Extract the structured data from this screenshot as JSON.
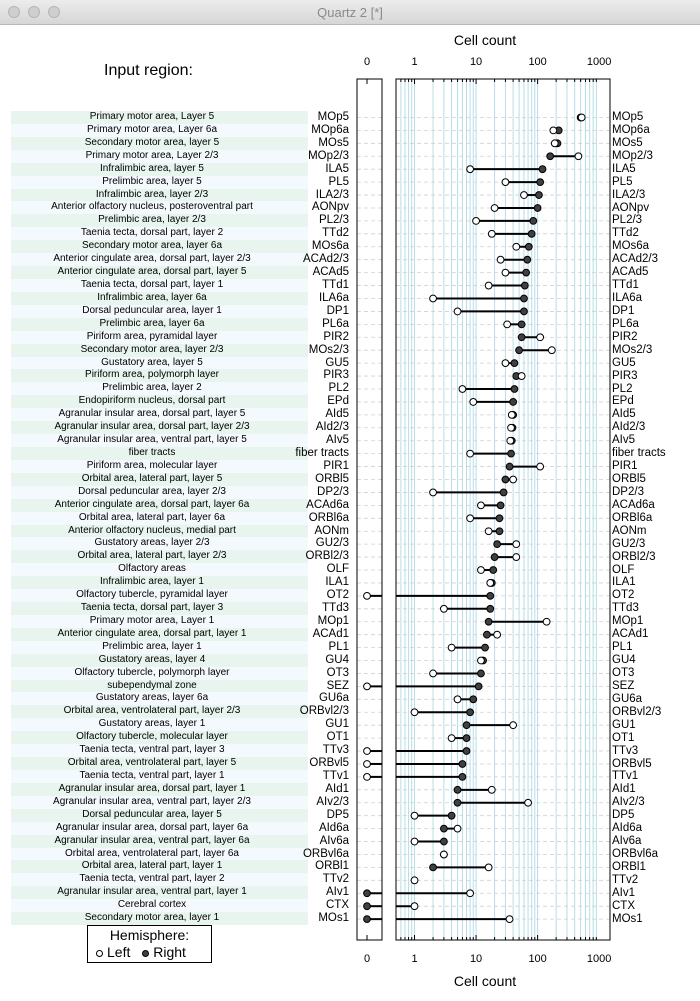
{
  "window": {
    "title": "Quartz 2 [*]"
  },
  "panel": {
    "region_title": "Input region:"
  },
  "legend": {
    "title": "Hemisphere:",
    "left_label": "Left",
    "right_label": "Right"
  },
  "colors": {
    "right_fill": "#404040",
    "left_fill": "#ffffff",
    "grid": "#b7dde8",
    "zebra_a": "#e8f4ee",
    "zebra_b": "#f3f9fd"
  },
  "chart_data": {
    "type": "scatter",
    "title": "",
    "xlabel": "Cell count",
    "xscale": "log",
    "xlim": [
      0.5,
      1500
    ],
    "zero_panel_tick": "0",
    "x_tick_labels": [
      "1",
      "10",
      "100",
      "1000"
    ],
    "series": [
      {
        "name": "Left",
        "marker": "open circle"
      },
      {
        "name": "Right",
        "marker": "filled circle"
      }
    ],
    "rows": [
      {
        "name": "Primary motor area, Layer 5",
        "abbr": "MOp5",
        "left": 520,
        "right": 500
      },
      {
        "name": "Primary motor area, Layer 6a",
        "abbr": "MOp6a",
        "left": 180,
        "right": 220
      },
      {
        "name": "Secondary motor area, layer 5",
        "abbr": "MOs5",
        "left": 190,
        "right": 210
      },
      {
        "name": "Primary motor area, Layer 2/3",
        "abbr": "MOp2/3",
        "left": 460,
        "right": 160
      },
      {
        "name": "Infralimbic area, layer 5",
        "abbr": "ILA5",
        "left": 8,
        "right": 120
      },
      {
        "name": "Prelimbic area, layer 5",
        "abbr": "PL5",
        "left": 30,
        "right": 110
      },
      {
        "name": "Infralimbic area, layer 2/3",
        "abbr": "ILA2/3",
        "left": 60,
        "right": 105
      },
      {
        "name": "Anterior olfactory nucleus, posteroventral part",
        "abbr": "AONpv",
        "left": 20,
        "right": 100
      },
      {
        "name": "Prelimbic area, layer 2/3",
        "abbr": "PL2/3",
        "left": 10,
        "right": 85
      },
      {
        "name": "Taenia tecta, dorsal part, layer 2",
        "abbr": "TTd2",
        "left": 18,
        "right": 80
      },
      {
        "name": "Secondary motor area, layer 6a",
        "abbr": "MOs6a",
        "left": 45,
        "right": 72
      },
      {
        "name": "Anterior cingulate area, dorsal part, layer 2/3",
        "abbr": "ACAd2/3",
        "left": 25,
        "right": 68
      },
      {
        "name": "Anterior cingulate area, dorsal part, layer 5",
        "abbr": "ACAd5",
        "left": 30,
        "right": 65
      },
      {
        "name": "Taenia tecta, dorsal part, layer 1",
        "abbr": "TTd1",
        "left": 16,
        "right": 62
      },
      {
        "name": "Infralimbic area, layer 6a",
        "abbr": "ILA6a",
        "left": 2,
        "right": 60
      },
      {
        "name": "Dorsal peduncular area, layer 1",
        "abbr": "DP1",
        "left": 5,
        "right": 60
      },
      {
        "name": "Prelimbic area, layer 6a",
        "abbr": "PL6a",
        "left": 32,
        "right": 55
      },
      {
        "name": "Piriform area, pyramidal layer",
        "abbr": "PIR2",
        "left": 110,
        "right": 55
      },
      {
        "name": "Secondary motor area, layer 2/3",
        "abbr": "MOs2/3",
        "left": 170,
        "right": 50
      },
      {
        "name": "Gustatory area, layer 5",
        "abbr": "GU5",
        "left": 30,
        "right": 42
      },
      {
        "name": "Piriform area, polymorph layer",
        "abbr": "PIR3",
        "left": 55,
        "right": 45
      },
      {
        "name": "Prelimbic area, layer 2",
        "abbr": "PL2",
        "left": 6,
        "right": 42
      },
      {
        "name": "Endopiriform nucleus, dorsal part",
        "abbr": "EPd",
        "left": 9,
        "right": 40
      },
      {
        "name": "Agranular insular area, dorsal part, layer 5",
        "abbr": "AId5",
        "left": 38,
        "right": 40
      },
      {
        "name": "Agranular insular area, dorsal part, layer 2/3",
        "abbr": "AId2/3",
        "left": 37,
        "right": 39
      },
      {
        "name": "Agranular insular area, ventral part, layer 5",
        "abbr": "AIv5",
        "left": 36,
        "right": 38
      },
      {
        "name": "fiber tracts",
        "abbr": "fiber tracts",
        "left": 8,
        "right": 37
      },
      {
        "name": "Piriform area, molecular layer",
        "abbr": "PIR1",
        "left": 110,
        "right": 35
      },
      {
        "name": "Orbital area, lateral part, layer 5",
        "abbr": "ORBl5",
        "left": 40,
        "right": 30
      },
      {
        "name": "Dorsal peduncular area, layer 2/3",
        "abbr": "DP2/3",
        "left": 2,
        "right": 28
      },
      {
        "name": "Anterior cingulate area, dorsal part, layer 6a",
        "abbr": "ACAd6a",
        "left": 12,
        "right": 25
      },
      {
        "name": "Orbital area, lateral part, layer 6a",
        "abbr": "ORBl6a",
        "left": 8,
        "right": 24
      },
      {
        "name": "Anterior olfactory nucleus, medial part",
        "abbr": "AONm",
        "left": 16,
        "right": 24
      },
      {
        "name": "Gustatory areas, layer 2/3",
        "abbr": "GU2/3",
        "left": 45,
        "right": 22
      },
      {
        "name": "Orbital area, lateral part, layer 2/3",
        "abbr": "ORBl2/3",
        "left": 45,
        "right": 20
      },
      {
        "name": "Olfactory areas",
        "abbr": "OLF",
        "left": 12,
        "right": 19
      },
      {
        "name": "Infralimbic area, layer 1",
        "abbr": "ILA1",
        "left": 17,
        "right": 18
      },
      {
        "name": "Olfactory tubercle, pyramidal layer",
        "abbr": "OT2",
        "left": 0,
        "right": 17
      },
      {
        "name": "Taenia tecta, dorsal part, layer 3",
        "abbr": "TTd3",
        "left": 3,
        "right": 17
      },
      {
        "name": "Primary motor area, Layer 1",
        "abbr": "MOp1",
        "left": 140,
        "right": 16
      },
      {
        "name": "Anterior cingulate area, dorsal part, layer 1",
        "abbr": "ACAd1",
        "left": 22,
        "right": 15
      },
      {
        "name": "Prelimbic area, layer 1",
        "abbr": "PL1",
        "left": 4,
        "right": 14
      },
      {
        "name": "Gustatory areas, layer 4",
        "abbr": "GU4",
        "left": 12,
        "right": 13
      },
      {
        "name": "Olfactory tubercle, polymorph layer",
        "abbr": "OT3",
        "left": 2,
        "right": 12
      },
      {
        "name": "subependymal zone",
        "abbr": "SEZ",
        "left": 0,
        "right": 11
      },
      {
        "name": "Gustatory areas, layer 6a",
        "abbr": "GU6a",
        "left": 5,
        "right": 9
      },
      {
        "name": "Orbital area, ventrolateral part, layer 2/3",
        "abbr": "ORBvl2/3",
        "left": 1,
        "right": 8
      },
      {
        "name": "Gustatory areas, layer 1",
        "abbr": "GU1",
        "left": 40,
        "right": 7
      },
      {
        "name": "Olfactory tubercle, molecular layer",
        "abbr": "OT1",
        "left": 4,
        "right": 7
      },
      {
        "name": "Taenia tecta, ventral part, layer 3",
        "abbr": "TTv3",
        "left": 0,
        "right": 7
      },
      {
        "name": "Orbital area, ventrolateral part, layer 5",
        "abbr": "ORBvl5",
        "left": 0,
        "right": 6
      },
      {
        "name": "Taenia tecta, ventral part, layer 1",
        "abbr": "TTv1",
        "left": 0,
        "right": 6
      },
      {
        "name": "Agranular insular area, dorsal part, layer 1",
        "abbr": "AId1",
        "left": 18,
        "right": 5
      },
      {
        "name": "Agranular insular area, ventral part, layer 2/3",
        "abbr": "AIv2/3",
        "left": 70,
        "right": 5
      },
      {
        "name": "Dorsal peduncular area, layer 5",
        "abbr": "DP5",
        "left": 1,
        "right": 4
      },
      {
        "name": "Agranular insular area, dorsal part, layer 6a",
        "abbr": "AId6a",
        "left": 5,
        "right": 3
      },
      {
        "name": "Agranular insular area, ventral part, layer 6a",
        "abbr": "AIv6a",
        "left": 1,
        "right": 3
      },
      {
        "name": "Orbital area, ventrolateral part, layer 6a",
        "abbr": "ORBvl6a",
        "left": 3,
        "right": 3
      },
      {
        "name": "Orbital area, lateral part, layer 1",
        "abbr": "ORBl1",
        "left": 16,
        "right": 2
      },
      {
        "name": "Taenia tecta, ventral part, layer 2",
        "abbr": "TTv2",
        "left": 1,
        "right": null
      },
      {
        "name": "Agranular insular area, ventral part, layer 1",
        "abbr": "AIv1",
        "left": 8,
        "right": 0
      },
      {
        "name": "Cerebral cortex",
        "abbr": "CTX",
        "left": 1,
        "right": 0
      },
      {
        "name": "Secondary motor area, layer 1",
        "abbr": "MOs1",
        "left": 35,
        "right": 0
      }
    ]
  }
}
